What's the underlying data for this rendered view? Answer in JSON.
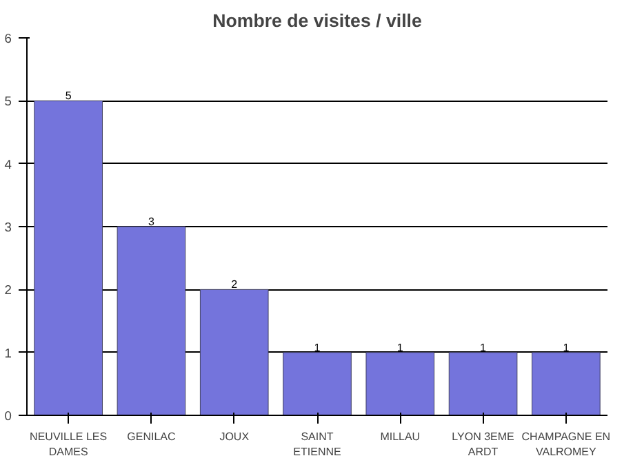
{
  "chart_data": {
    "type": "bar",
    "title": "Nombre de visites / ville",
    "categories": [
      "NEUVILLE LES DAMES",
      "GENILAC",
      "JOUX",
      "SAINT ETIENNE",
      "MILLAU",
      "LYON 3EME ARDT",
      "CHAMPAGNE EN VALROMEY"
    ],
    "values": [
      5,
      3,
      2,
      1,
      1,
      1,
      1
    ],
    "color": "#7474dc",
    "ylim": [
      0,
      6
    ],
    "yticks": [
      0,
      1,
      2,
      3,
      4,
      5,
      6
    ],
    "grid": "y",
    "data_labels": true
  }
}
